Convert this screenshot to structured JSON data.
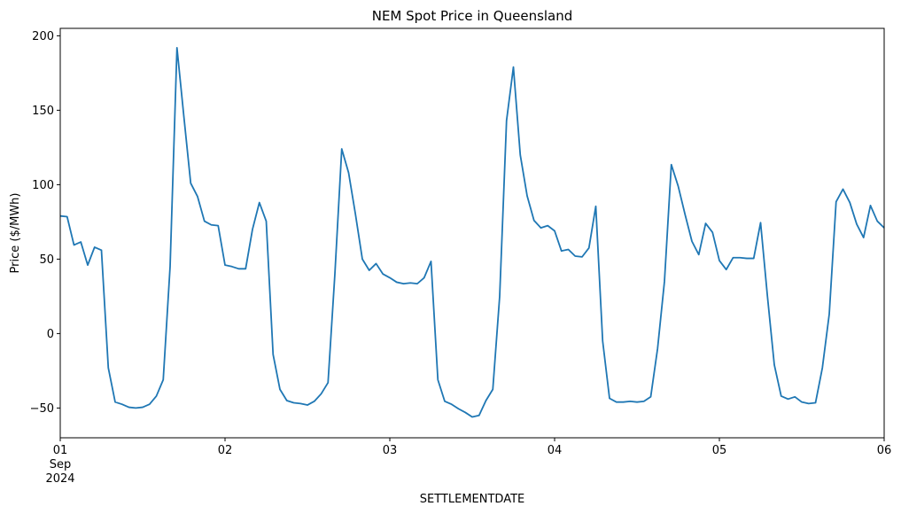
{
  "chart_data": {
    "type": "line",
    "title": "NEM Spot Price in Queensland",
    "xlabel": "SETTLEMENTDATE",
    "ylabel": "Price ($/MWh)",
    "xlim": [
      "2024-09-01 00:00",
      "2024-09-06 00:00"
    ],
    "ylim": [
      -70,
      205
    ],
    "yticks": [
      -50,
      0,
      50,
      100,
      150,
      200
    ],
    "ytick_labels": [
      "−50",
      "0",
      "50",
      "100",
      "150",
      "200"
    ],
    "xticks": [
      {
        "date": "2024-09-01 00:00",
        "lines": [
          "01",
          "Sep",
          "2024"
        ]
      },
      {
        "date": "2024-09-02 00:00",
        "lines": [
          "02"
        ]
      },
      {
        "date": "2024-09-03 00:00",
        "lines": [
          "03"
        ]
      },
      {
        "date": "2024-09-04 00:00",
        "lines": [
          "04"
        ]
      },
      {
        "date": "2024-09-05 00:00",
        "lines": [
          "05"
        ]
      },
      {
        "date": "2024-09-06 00:00",
        "lines": [
          "06"
        ]
      }
    ],
    "grid": false,
    "series": [
      {
        "color": "#1f77b4",
        "x": [
          "2024-09-01 00:00",
          "2024-09-01 01:00",
          "2024-09-01 02:00",
          "2024-09-01 03:00",
          "2024-09-01 04:00",
          "2024-09-01 05:00",
          "2024-09-01 06:00",
          "2024-09-01 07:00",
          "2024-09-01 08:00",
          "2024-09-01 09:00",
          "2024-09-01 10:00",
          "2024-09-01 11:00",
          "2024-09-01 12:00",
          "2024-09-01 13:00",
          "2024-09-01 14:00",
          "2024-09-01 15:00",
          "2024-09-01 16:00",
          "2024-09-01 17:00",
          "2024-09-01 18:00",
          "2024-09-01 19:00",
          "2024-09-01 20:00",
          "2024-09-01 21:00",
          "2024-09-01 22:00",
          "2024-09-01 23:00",
          "2024-09-02 00:00",
          "2024-09-02 01:00",
          "2024-09-02 02:00",
          "2024-09-02 03:00",
          "2024-09-02 04:00",
          "2024-09-02 05:00",
          "2024-09-02 06:00",
          "2024-09-02 07:00",
          "2024-09-02 08:00",
          "2024-09-02 09:00",
          "2024-09-02 10:00",
          "2024-09-02 11:00",
          "2024-09-02 12:00",
          "2024-09-02 13:00",
          "2024-09-02 14:00",
          "2024-09-02 15:00",
          "2024-09-02 16:00",
          "2024-09-02 17:00",
          "2024-09-02 18:00",
          "2024-09-02 19:00",
          "2024-09-02 20:00",
          "2024-09-02 21:00",
          "2024-09-02 22:00",
          "2024-09-02 23:00",
          "2024-09-03 00:00",
          "2024-09-03 01:00",
          "2024-09-03 02:00",
          "2024-09-03 03:00",
          "2024-09-03 04:00",
          "2024-09-03 05:00",
          "2024-09-03 06:00",
          "2024-09-03 07:00",
          "2024-09-03 08:00",
          "2024-09-03 09:00",
          "2024-09-03 10:00",
          "2024-09-03 11:00",
          "2024-09-03 12:00",
          "2024-09-03 13:00",
          "2024-09-03 14:00",
          "2024-09-03 15:00",
          "2024-09-03 16:00",
          "2024-09-03 17:00",
          "2024-09-03 18:00",
          "2024-09-03 19:00",
          "2024-09-03 20:00",
          "2024-09-03 21:00",
          "2024-09-03 22:00",
          "2024-09-03 23:00",
          "2024-09-04 00:00",
          "2024-09-04 01:00",
          "2024-09-04 02:00",
          "2024-09-04 03:00",
          "2024-09-04 04:00",
          "2024-09-04 05:00",
          "2024-09-04 06:00",
          "2024-09-04 07:00",
          "2024-09-04 08:00",
          "2024-09-04 09:00",
          "2024-09-04 10:00",
          "2024-09-04 11:00",
          "2024-09-04 12:00",
          "2024-09-04 13:00",
          "2024-09-04 14:00",
          "2024-09-04 15:00",
          "2024-09-04 16:00",
          "2024-09-04 17:00",
          "2024-09-04 18:00",
          "2024-09-04 19:00",
          "2024-09-04 20:00",
          "2024-09-04 21:00",
          "2024-09-04 22:00",
          "2024-09-04 23:00",
          "2024-09-05 00:00",
          "2024-09-05 01:00",
          "2024-09-05 02:00",
          "2024-09-05 03:00",
          "2024-09-05 04:00",
          "2024-09-05 05:00",
          "2024-09-05 06:00",
          "2024-09-05 07:00",
          "2024-09-05 08:00",
          "2024-09-05 09:00",
          "2024-09-05 10:00",
          "2024-09-05 11:00",
          "2024-09-05 12:00",
          "2024-09-05 13:00",
          "2024-09-05 14:00",
          "2024-09-05 15:00",
          "2024-09-05 16:00",
          "2024-09-05 17:00",
          "2024-09-05 18:00",
          "2024-09-05 19:00",
          "2024-09-05 20:00",
          "2024-09-05 21:00",
          "2024-09-05 22:00",
          "2024-09-05 23:00",
          "2024-09-06 00:00"
        ],
        "values": [
          79,
          78.5,
          59.5,
          61.5,
          46,
          58,
          56,
          -23,
          -46,
          -47.5,
          -49.5,
          -50,
          -49.5,
          -47.5,
          -42,
          -31,
          45,
          192,
          146,
          101,
          92,
          75.5,
          73,
          72.5,
          46,
          45,
          43.5,
          43.5,
          70,
          88,
          75.5,
          -14,
          -37.5,
          -45,
          -46.5,
          -47,
          -48,
          -45.5,
          -40.5,
          -33,
          40,
          124,
          108,
          80,
          50,
          42.5,
          47,
          40,
          37.5,
          34.5,
          33.5,
          34,
          33.5,
          37.5,
          48.5,
          -31,
          -45.5,
          -47.5,
          -50.5,
          -53,
          -56,
          -55,
          -45,
          -37.5,
          25,
          143,
          179,
          120,
          92.5,
          76,
          71,
          72.5,
          69,
          55.5,
          56.5,
          52,
          51.5,
          57.5,
          85.5,
          -5,
          -43.5,
          -46,
          -46,
          -45.5,
          -46,
          -45.5,
          -42.5,
          -10,
          35,
          113.5,
          99,
          80,
          62,
          53,
          74,
          68,
          49,
          43,
          51,
          51,
          50.5,
          50.5,
          74.5,
          25,
          -21,
          -42,
          -44,
          -42.5,
          -46,
          -47,
          -46.5,
          -23,
          13,
          88.5,
          97,
          88,
          73.5,
          64.5,
          86,
          75.5,
          71
        ]
      }
    ]
  }
}
